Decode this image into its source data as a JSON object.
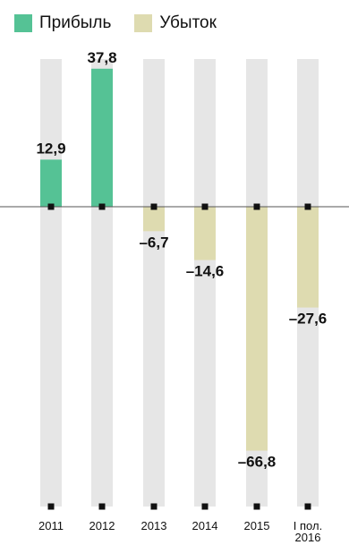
{
  "legend": {
    "profit_label": "Прибыль",
    "loss_label": "Убыток"
  },
  "chart_data": {
    "type": "bar",
    "categories": [
      "2011",
      "2012",
      "2013",
      "2014",
      "2015",
      "I пол.\n2016"
    ],
    "values": [
      12.9,
      37.8,
      -6.7,
      -14.6,
      -66.8,
      -27.6
    ],
    "value_labels": [
      "12,9",
      "37,8",
      "–6,7",
      "–14,6",
      "–66,8",
      "–27,6"
    ],
    "series": [
      {
        "name": "Прибыль",
        "color": "#55c295"
      },
      {
        "name": "Убыток",
        "color": "#dedbb0"
      }
    ],
    "background_bar_color": "#e6e6e6",
    "axis_line_color": "#555555",
    "ylim": [
      -78,
      38
    ],
    "legend_position": "top-left",
    "grid": false
  }
}
